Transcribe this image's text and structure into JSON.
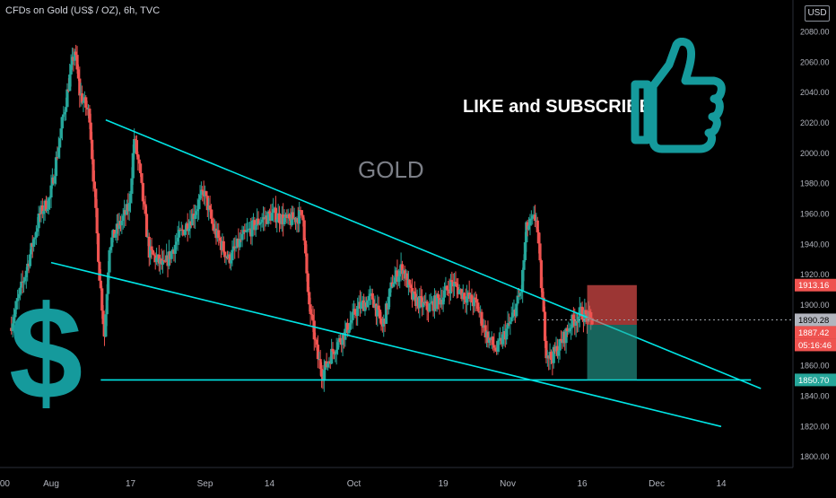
{
  "header": {
    "title": "CFDs on Gold (US$ / OZ), 6h, TVC",
    "currency": "USD"
  },
  "annotations": {
    "like_subscribe": "LIKE and SUBSCRIBE",
    "gold": "GOLD",
    "dollar": "$"
  },
  "price_labels": {
    "last": "1890.28",
    "prev": "1887.42",
    "countdown": "05:16:46",
    "target_top": "1913.16",
    "target_bottom": "1850.70"
  },
  "colors": {
    "up": "#26a69a",
    "down": "#ef5350",
    "trend": "#00e5e5",
    "accent": "#159a9c"
  },
  "chart_data": {
    "type": "candlestick",
    "title": "CFDs on Gold (US$ / OZ), 6h, TVC",
    "y_ticks": [
      1800,
      1820,
      1840,
      1860,
      1880,
      1900,
      1920,
      1940,
      1960,
      1980,
      2000,
      2020,
      2040,
      2060,
      2080
    ],
    "x_ticks": [
      ":00",
      "Aug",
      "17",
      "Sep",
      "14",
      "Oct",
      "19",
      "Nov",
      "16",
      "Dec",
      "14"
    ],
    "ylim": [
      1793,
      2101
    ],
    "grid": false,
    "price_path": [
      [
        "Jul 24",
        1885
      ],
      [
        "Jul 27",
        1920
      ],
      [
        "Jul 30",
        1960
      ],
      [
        "Aug 1",
        1970
      ],
      [
        "Aug 3",
        2010
      ],
      [
        "Aug 5",
        2050
      ],
      [
        "Aug 6",
        2068
      ],
      [
        "Aug 7",
        2040
      ],
      [
        "Aug 9",
        2025
      ],
      [
        "Aug 11",
        1920
      ],
      [
        "Aug 12",
        1880
      ],
      [
        "Aug 13",
        1940
      ],
      [
        "Aug 17",
        1965
      ],
      [
        "Aug 18",
        2010
      ],
      [
        "Aug 19",
        1990
      ],
      [
        "Aug 21",
        1935
      ],
      [
        "Aug 24",
        1925
      ],
      [
        "Aug 27",
        1945
      ],
      [
        "Aug 30",
        1960
      ],
      [
        "Sep 1",
        1975
      ],
      [
        "Sep 3",
        1950
      ],
      [
        "Sep 6",
        1930
      ],
      [
        "Sep 9",
        1945
      ],
      [
        "Sep 12",
        1955
      ],
      [
        "Sep 15",
        1960
      ],
      [
        "Sep 18",
        1955
      ],
      [
        "Sep 21",
        1960
      ],
      [
        "Sep 22",
        1905
      ],
      [
        "Sep 24",
        1865
      ],
      [
        "Sep 25",
        1855
      ],
      [
        "Sep 27",
        1870
      ],
      [
        "Sep 30",
        1885
      ],
      [
        "Oct 2",
        1898
      ],
      [
        "Oct 5",
        1905
      ],
      [
        "Oct 7",
        1885
      ],
      [
        "Oct 9",
        1915
      ],
      [
        "Oct 11",
        1925
      ],
      [
        "Oct 13",
        1905
      ],
      [
        "Oct 16",
        1898
      ],
      [
        "Oct 19",
        1905
      ],
      [
        "Oct 21",
        1915
      ],
      [
        "Oct 23",
        1908
      ],
      [
        "Oct 26",
        1900
      ],
      [
        "Oct 28",
        1880
      ],
      [
        "Oct 30",
        1870
      ],
      [
        "Nov 2",
        1890
      ],
      [
        "Nov 4",
        1910
      ],
      [
        "Nov 5",
        1950
      ],
      [
        "Nov 7",
        1958
      ],
      [
        "Nov 9",
        1870
      ],
      [
        "Nov 10",
        1865
      ],
      [
        "Nov 12",
        1875
      ],
      [
        "Nov 14",
        1888
      ],
      [
        "Nov 16",
        1895
      ],
      [
        "Nov 18",
        1890
      ]
    ],
    "trendlines": [
      {
        "from": [
          "Aug 12",
          2022
        ],
        "to": [
          "Dec 22",
          1845
        ]
      },
      {
        "from": [
          "Aug 1",
          1928
        ],
        "to": [
          "Dec 14",
          1820
        ]
      },
      {
        "from": [
          "Aug 11",
          1850.7
        ],
        "to": [
          "Dec 20",
          1850.7
        ]
      }
    ],
    "position": {
      "entry": 1887,
      "stop": 1913.16,
      "target": 1850.7,
      "start": "Nov 17",
      "end": "Nov 27"
    },
    "last_price": 1890.28
  }
}
